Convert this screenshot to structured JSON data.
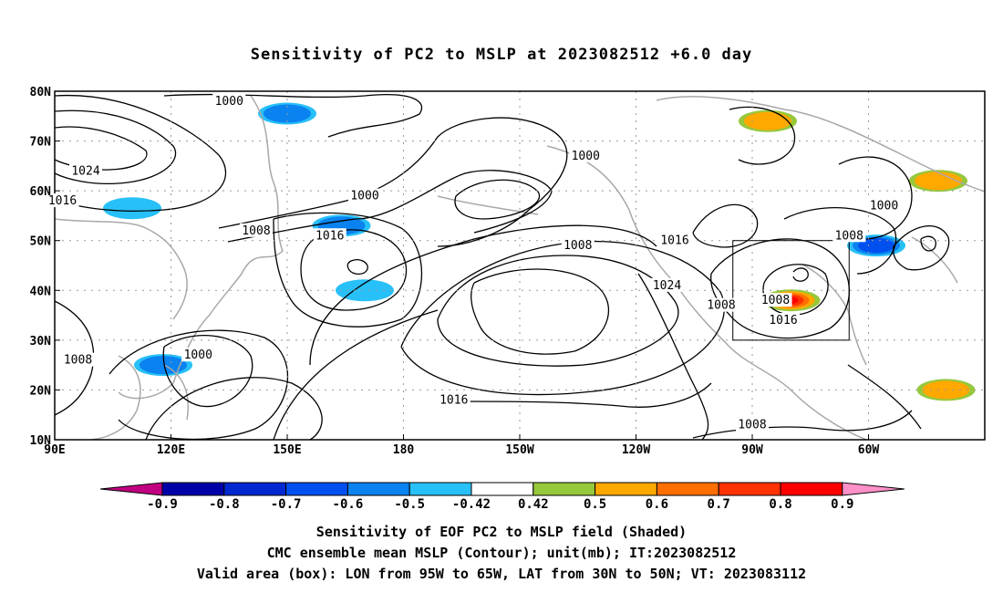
{
  "title": "Sensitivity of PC2 to MSLP at 2023082512 +6.0 day",
  "lat_labels": [
    "80N",
    "70N",
    "60N",
    "50N",
    "40N",
    "30N",
    "20N",
    "10N"
  ],
  "lon_labels": [
    "90E",
    "120E",
    "150E",
    "180",
    "150W",
    "120W",
    "90W",
    "60W"
  ],
  "contour_labels": [
    {
      "text": "1000",
      "lon": 135,
      "lat": 78
    },
    {
      "text": "1024",
      "lon": 98,
      "lat": 64
    },
    {
      "text": "1016",
      "lon": 92,
      "lat": 58
    },
    {
      "text": "1000",
      "lon": 170,
      "lat": 59
    },
    {
      "text": "1008",
      "lon": 142,
      "lat": 52
    },
    {
      "text": "1016",
      "lon": 161,
      "lat": 51
    },
    {
      "text": "1000",
      "lon": 227,
      "lat": 67
    },
    {
      "text": "1008",
      "lon": 225,
      "lat": 49
    },
    {
      "text": "1016",
      "lon": 250,
      "lat": 50
    },
    {
      "text": "1024",
      "lon": 248,
      "lat": 41
    },
    {
      "text": "1008",
      "lon": 262,
      "lat": 37
    },
    {
      "text": "1008",
      "lon": 276,
      "lat": 38
    },
    {
      "text": "1016",
      "lon": 278,
      "lat": 34
    },
    {
      "text": "1008",
      "lon": 295,
      "lat": 51
    },
    {
      "text": "1000",
      "lon": 304,
      "lat": 57
    },
    {
      "text": "1008",
      "lon": 96,
      "lat": 26
    },
    {
      "text": "1000",
      "lon": 127,
      "lat": 27
    },
    {
      "text": "1016",
      "lon": 193,
      "lat": 18
    },
    {
      "text": "1008",
      "lon": 270,
      "lat": 13
    }
  ],
  "colorbar": {
    "labels": [
      "-0.9",
      "-0.8",
      "-0.7",
      "-0.6",
      "-0.5",
      "-0.42",
      "0.42",
      "0.5",
      "0.6",
      "0.7",
      "0.8",
      "0.9"
    ],
    "colors": [
      "#c00080",
      "#0000a8",
      "#0028d0",
      "#0050f0",
      "#0a82f0",
      "#28c0f8",
      "#ffffff",
      "#96c83c",
      "#ffa800",
      "#ff6e00",
      "#ff3200",
      "#ff0000",
      "#ff90c8"
    ]
  },
  "shaded_regions": [
    {
      "lon": 150,
      "lat": 75.5,
      "sens": -0.55
    },
    {
      "lon": 164,
      "lat": 53,
      "sens": -0.6
    },
    {
      "lon": 118,
      "lat": 25,
      "sens": -0.55
    },
    {
      "lon": 110,
      "lat": 56.5,
      "sens": -0.5
    },
    {
      "lon": 170,
      "lat": 40,
      "sens": -0.5
    },
    {
      "lon": 274,
      "lat": 74,
      "sens": 0.6
    },
    {
      "lon": 280,
      "lat": 38,
      "sens": 0.85
    },
    {
      "lon": 302,
      "lat": 49,
      "sens": -0.65
    },
    {
      "lon": 318,
      "lat": 62,
      "sens": 0.6
    },
    {
      "lon": 320,
      "lat": 20,
      "sens": 0.55
    }
  ],
  "valid_box": {
    "lon_min": 265,
    "lon_max": 295,
    "lat_min": 30,
    "lat_max": 50
  },
  "caption_line1": "Sensitivity of EOF PC2 to MSLP field (Shaded)",
  "caption_line2": "CMC ensemble mean MSLP (Contour); unit(mb); IT:2023082512",
  "caption_line3": "Valid area (box): LON from 95W to 65W, LAT from 30N to 50N; VT: 2023083112"
}
